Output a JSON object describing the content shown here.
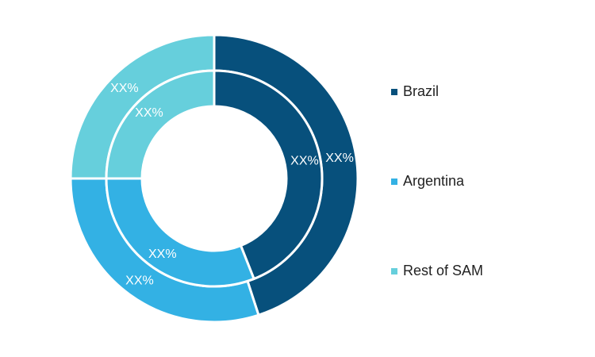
{
  "chart_data": {
    "type": "pie",
    "variant": "double-donut",
    "categories": [
      "Brazil",
      "Argentina",
      "Rest of SAM"
    ],
    "colors": [
      "#07507c",
      "#33b1e4",
      "#66cfdc"
    ],
    "series": [
      {
        "ring": "outer",
        "values": [
          0.45,
          0.3,
          0.25
        ],
        "labels": [
          "XX%",
          "XX%",
          "XX%"
        ]
      },
      {
        "ring": "inner",
        "values": [
          0.44,
          0.31,
          0.25
        ],
        "labels": [
          "XX%",
          "XX%",
          "XX%"
        ]
      }
    ],
    "legend": {
      "position": "right",
      "items": [
        {
          "label": "Brazil",
          "color": "#07507c"
        },
        {
          "label": "Argentina",
          "color": "#33b1e4"
        },
        {
          "label": "Rest of SAM",
          "color": "#66cfdc"
        }
      ]
    }
  }
}
